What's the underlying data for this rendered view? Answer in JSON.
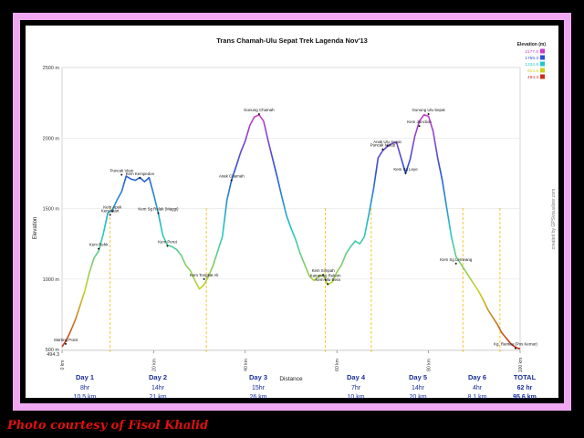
{
  "credit": "Photo courtesy of Fisol Khalid",
  "colors": {
    "background": "#000000",
    "frame": "#f0a8f0",
    "day_text": "#1a2f9a",
    "credit_text": "#e01010",
    "divider": "#f0b800"
  },
  "chart_data": {
    "type": "line",
    "title": "Trans Chamah-Ulu Sepat Trek Lagenda Nov'13",
    "xlabel": "Distance",
    "ylabel": "Elevation",
    "xlim": [
      0,
      100
    ],
    "ylim": [
      494.3,
      2500
    ],
    "x_ticks": [
      {
        "value": 0,
        "label": "0 km"
      },
      {
        "value": 20,
        "label": "20 km"
      },
      {
        "value": 40,
        "label": "40 km"
      },
      {
        "value": 60,
        "label": "60 km"
      },
      {
        "value": 80,
        "label": "80 km"
      },
      {
        "value": 100,
        "label": "100 km"
      }
    ],
    "y_ticks": [
      {
        "value": 494.3,
        "label": "494.3"
      },
      {
        "value": 500,
        "label": "500 m"
      },
      {
        "value": 1000,
        "label": "1000 m"
      },
      {
        "value": 1500,
        "label": "1500 m"
      },
      {
        "value": 2000,
        "label": "2000 m"
      },
      {
        "value": 2500,
        "label": "2500 m"
      }
    ],
    "legend": {
      "title": "Elevation (m)",
      "entries": [
        {
          "label": "2177.5",
          "color": "#c83cc8"
        },
        {
          "label": "1755.3",
          "color": "#2a4fd8"
        },
        {
          "label": "1334.9",
          "color": "#22c8c8"
        },
        {
          "label": "914.6",
          "color": "#c8d020"
        },
        {
          "label": "494.3",
          "color": "#c83020"
        }
      ]
    },
    "watermark": "created by GPSvisualizer.com",
    "series": [
      {
        "x": [
          0,
          1,
          2,
          3,
          4,
          5,
          6,
          7,
          8,
          9,
          10,
          11,
          12,
          13,
          14,
          15,
          16,
          17,
          18,
          19,
          20,
          21,
          22,
          23,
          24,
          25,
          26,
          27,
          28,
          29,
          30,
          31,
          32,
          33,
          34,
          35,
          36,
          37,
          38,
          39,
          40,
          41,
          42,
          43,
          44,
          45,
          46,
          47,
          48,
          49,
          50,
          51,
          52,
          53,
          54,
          55,
          56,
          57,
          58,
          59,
          60,
          61,
          62,
          63,
          64,
          65,
          66,
          67,
          68,
          69,
          70,
          71,
          72,
          73,
          74,
          75,
          76,
          77,
          78,
          79,
          80,
          81,
          82,
          83,
          84,
          85,
          86,
          87,
          88,
          89,
          90,
          91,
          92,
          93,
          94,
          95,
          96,
          97,
          98,
          99,
          100
        ],
        "y": [
          520,
          570,
          640,
          720,
          820,
          920,
          1050,
          1150,
          1200,
          1320,
          1470,
          1490,
          1560,
          1620,
          1730,
          1710,
          1700,
          1720,
          1690,
          1720,
          1600,
          1470,
          1310,
          1240,
          1230,
          1210,
          1170,
          1100,
          1060,
          990,
          930,
          960,
          1020,
          1100,
          1200,
          1300,
          1560,
          1700,
          1800,
          1900,
          1980,
          2090,
          2150,
          2165,
          2120,
          1980,
          1850,
          1720,
          1580,
          1450,
          1360,
          1280,
          1180,
          1100,
          1020,
          990,
          1020,
          1030,
          960,
          980,
          1050,
          1100,
          1180,
          1230,
          1270,
          1250,
          1300,
          1460,
          1640,
          1860,
          1910,
          1940,
          1960,
          1970,
          1860,
          1750,
          1850,
          2010,
          2120,
          2165,
          2155,
          2050,
          1860,
          1700,
          1500,
          1300,
          1160,
          1110,
          1060,
          1010,
          960,
          910,
          850,
          780,
          730,
          680,
          620,
          580,
          540,
          515,
          505
        ]
      }
    ],
    "annotations": [
      {
        "x": 0.8,
        "y": 540,
        "text": "Starting Point"
      },
      {
        "x": 8,
        "y": 1215,
        "text": "Kem Rehk"
      },
      {
        "x": 11,
        "y": 1480,
        "text": "Kem Apek"
      },
      {
        "x": 10.5,
        "y": 1455,
        "text": "Kem Start"
      },
      {
        "x": 13,
        "y": 1740,
        "text": "Puncak View"
      },
      {
        "x": 17,
        "y": 1718,
        "text": "Kem Kempedon"
      },
      {
        "x": 21,
        "y": 1468,
        "text": "Kem Sg Relak (Maggi)"
      },
      {
        "x": 23,
        "y": 1235,
        "text": "Kem Perut"
      },
      {
        "x": 31,
        "y": 1000,
        "text": "Kem Tongkat Ali"
      },
      {
        "x": 37,
        "y": 1700,
        "text": "Anak Chamah"
      },
      {
        "x": 43,
        "y": 2170,
        "text": "Gunung Chamah"
      },
      {
        "x": 57,
        "y": 1030,
        "text": "Kem Simpah"
      },
      {
        "x": 57.5,
        "y": 995,
        "text": "Kampung Rekom"
      },
      {
        "x": 58,
        "y": 965,
        "text": "Kem Ulu Bera"
      },
      {
        "x": 71,
        "y": 1945,
        "text": "Anak Ulu Sepat"
      },
      {
        "x": 70,
        "y": 1920,
        "text": "Puncak Hidup"
      },
      {
        "x": 75,
        "y": 1750,
        "text": "Kem Sg Leye"
      },
      {
        "x": 80,
        "y": 2170,
        "text": "Gunung Ulu Sepat"
      },
      {
        "x": 78,
        "y": 2085,
        "text": "Kem Junction"
      },
      {
        "x": 86,
        "y": 1110,
        "text": "Kem Sg Lemeang"
      },
      {
        "x": 99,
        "y": 510,
        "text": "Kg. Rantau (Pos Kemar)"
      }
    ],
    "day_boundaries": [
      10.5,
      31.5,
      57.5,
      67.5,
      87.5,
      95.6
    ],
    "days": [
      {
        "label": "Day 1",
        "hours": "8hr",
        "distance": "10.5 km"
      },
      {
        "label": "Day 2",
        "hours": "14hr",
        "distance": "21 km"
      },
      {
        "label": "Day 3",
        "hours": "15hr",
        "distance": "26 km"
      },
      {
        "label": "Day 4",
        "hours": "7hr",
        "distance": "10 km"
      },
      {
        "label": "Day 5",
        "hours": "14hr",
        "distance": "20 km"
      },
      {
        "label": "Day 6",
        "hours": "4hr",
        "distance": "8.1 km"
      }
    ],
    "total": {
      "label": "TOTAL",
      "hours": "62 hr",
      "distance": "95.6 km"
    }
  }
}
